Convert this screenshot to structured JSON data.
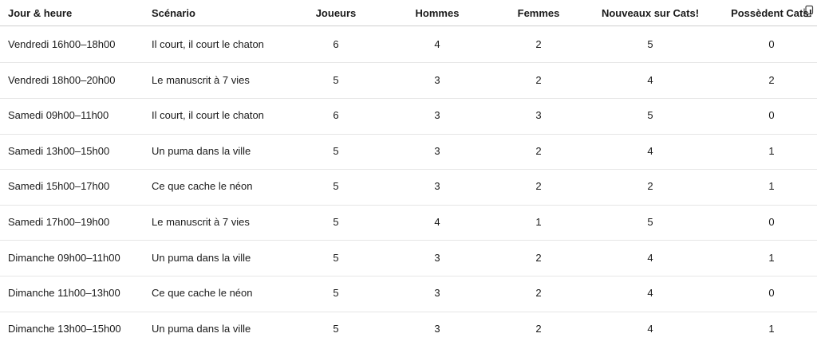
{
  "table": {
    "header": [
      "Jour & heure",
      "Scénario",
      "Joueurs",
      "Hommes",
      "Femmes",
      "Nouveaux sur Cats!",
      "Possèdent Cats!"
    ],
    "rows": [
      [
        "Vendredi 16h00–18h00",
        "Il court, il court le chaton",
        6,
        4,
        2,
        5,
        0
      ],
      [
        "Vendredi 18h00–20h00",
        "Le manuscrit à 7 vies",
        5,
        3,
        2,
        4,
        2
      ],
      [
        "Samedi 09h00–11h00",
        "Il court, il court le chaton",
        6,
        3,
        3,
        5,
        0
      ],
      [
        "Samedi 13h00–15h00",
        "Un puma dans la ville",
        5,
        3,
        2,
        4,
        1
      ],
      [
        "Samedi 15h00–17h00",
        "Ce que cache le néon",
        5,
        3,
        2,
        2,
        1
      ],
      [
        "Samedi 17h00–19h00",
        "Le manuscrit à 7 vies",
        5,
        4,
        1,
        5,
        0
      ],
      [
        "Dimanche 09h00–11h00",
        "Un puma dans la ville",
        5,
        3,
        2,
        4,
        1
      ],
      [
        "Dimanche 11h00–13h00",
        "Ce que cache le néon",
        5,
        3,
        2,
        4,
        0
      ],
      [
        "Dimanche 13h00–15h00",
        "Un puma dans la ville",
        5,
        3,
        2,
        4,
        1
      ]
    ]
  }
}
